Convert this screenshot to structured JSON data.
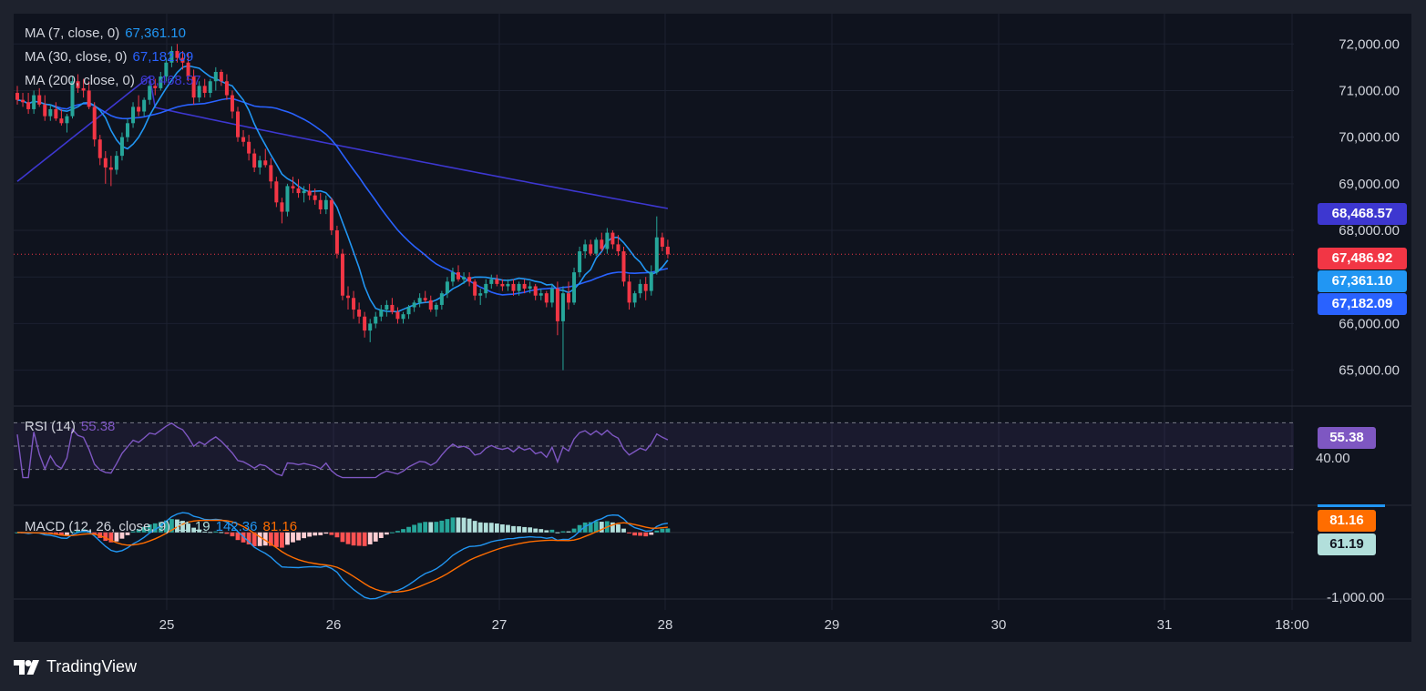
{
  "colors": {
    "background": "#0f131e",
    "frame": "#1e222d",
    "grid": "#1c2130",
    "up": "#26a69a",
    "down": "#f23645",
    "ma7": "#2196f3",
    "ma30": "#2962ff",
    "ma200": "#3d37d0",
    "rsi": "#7e57c2",
    "macd": "#2196f3",
    "signal": "#ff6d00",
    "axis_text": "#d1d4dc"
  },
  "legend": {
    "ma7": {
      "label": "MA (7, close, 0)",
      "value": "67,361.10"
    },
    "ma30": {
      "label": "MA (30, close, 0)",
      "value": "67,182.09"
    },
    "ma200": {
      "label": "MA (200, close, 0)",
      "value": "68,468.57"
    },
    "rsi": {
      "label": "RSI (14)",
      "value": "55.38"
    },
    "macd": {
      "label": "MACD (12, 26, close, 9)",
      "hist": "61.19",
      "macd": "142.36",
      "signal": "81.16"
    }
  },
  "price_tags": {
    "ma200": "68,468.57",
    "last": "67,486.92",
    "ma7": "67,361.10",
    "ma30": "67,182.09",
    "rsi": "55.38",
    "rsi_level": "40.00",
    "macd_signal": "81.16",
    "macd_hist": "61.19",
    "macd_level": "-1,000.00"
  },
  "brand": "TradingView",
  "chart_data": {
    "type": "candlestick",
    "x_ticks": [
      "25",
      "26",
      "27",
      "28",
      "29",
      "30",
      "31",
      "18:00"
    ],
    "y_ticks": [
      "72,000.00",
      "71,000.00",
      "70,000.00",
      "69,000.00",
      "68,000.00",
      "67,000.00",
      "66,000.00",
      "65,000.00"
    ],
    "y_range": [
      64250,
      72650
    ],
    "last_price": 67486.92,
    "candles": [
      [
        70950,
        71100,
        70700,
        70800
      ],
      [
        70800,
        70950,
        70650,
        70750
      ],
      [
        70750,
        70950,
        70500,
        70600
      ],
      [
        70600,
        71000,
        70500,
        70900
      ],
      [
        70900,
        71050,
        70650,
        70700
      ],
      [
        70700,
        70900,
        70350,
        70450
      ],
      [
        70450,
        70700,
        70350,
        70600
      ],
      [
        70600,
        70750,
        70350,
        70400
      ],
      [
        70400,
        70600,
        70250,
        70300
      ],
      [
        70300,
        70500,
        70100,
        70450
      ],
      [
        70450,
        71300,
        70400,
        71200
      ],
      [
        71200,
        71350,
        70950,
        71050
      ],
      [
        71050,
        71250,
        70850,
        71000
      ],
      [
        71000,
        71200,
        70600,
        70650
      ],
      [
        70650,
        70750,
        69800,
        69950
      ],
      [
        69950,
        70050,
        69400,
        69550
      ],
      [
        69550,
        69700,
        69000,
        69350
      ],
      [
        69350,
        69600,
        68950,
        69300
      ],
      [
        69300,
        69700,
        69200,
        69600
      ],
      [
        69600,
        70100,
        69500,
        70000
      ],
      [
        70000,
        70400,
        69900,
        70300
      ],
      [
        70300,
        70750,
        70200,
        70650
      ],
      [
        70650,
        70900,
        70450,
        70550
      ],
      [
        70550,
        70850,
        70450,
        70800
      ],
      [
        70800,
        71200,
        70700,
        71100
      ],
      [
        71100,
        71250,
        70900,
        71050
      ],
      [
        71050,
        71400,
        71000,
        71300
      ],
      [
        71300,
        71700,
        71200,
        71600
      ],
      [
        71600,
        71950,
        71500,
        71850
      ],
      [
        71850,
        72000,
        71600,
        71700
      ],
      [
        71700,
        71850,
        71450,
        71600
      ],
      [
        71600,
        71800,
        71200,
        71300
      ],
      [
        71300,
        71450,
        70700,
        70850
      ],
      [
        70850,
        71200,
        70750,
        71100
      ],
      [
        71100,
        71250,
        70850,
        70950
      ],
      [
        70950,
        71250,
        70850,
        71200
      ],
      [
        71200,
        71500,
        71000,
        71400
      ],
      [
        71400,
        71450,
        71100,
        71200
      ],
      [
        71200,
        71350,
        70800,
        70900
      ],
      [
        70900,
        71000,
        70400,
        70550
      ],
      [
        70550,
        70650,
        69900,
        70000
      ],
      [
        70000,
        70150,
        69800,
        69900
      ],
      [
        69900,
        70050,
        69500,
        69650
      ],
      [
        69650,
        69750,
        69250,
        69350
      ],
      [
        69350,
        69600,
        69200,
        69500
      ],
      [
        69500,
        69750,
        69350,
        69400
      ],
      [
        69400,
        69550,
        68900,
        69050
      ],
      [
        69050,
        69150,
        68500,
        68600
      ],
      [
        68600,
        68700,
        68150,
        68400
      ],
      [
        68400,
        69000,
        68300,
        68950
      ],
      [
        68950,
        69150,
        68800,
        68900
      ],
      [
        68900,
        69100,
        68700,
        68800
      ],
      [
        68800,
        68950,
        68600,
        68850
      ],
      [
        68850,
        69000,
        68650,
        68750
      ],
      [
        68750,
        68900,
        68550,
        68650
      ],
      [
        68650,
        68800,
        68350,
        68450
      ],
      [
        68450,
        68750,
        68350,
        68650
      ],
      [
        68650,
        68700,
        67900,
        68000
      ],
      [
        68000,
        68100,
        67400,
        67500
      ],
      [
        67500,
        67600,
        66500,
        66600
      ],
      [
        66600,
        66800,
        66300,
        66550
      ],
      [
        66550,
        66700,
        66100,
        66300
      ],
      [
        66300,
        66450,
        66000,
        66150
      ],
      [
        66150,
        66250,
        65700,
        65850
      ],
      [
        65850,
        66100,
        65600,
        66000
      ],
      [
        66000,
        66250,
        65900,
        66150
      ],
      [
        66150,
        66400,
        66050,
        66300
      ],
      [
        66300,
        66500,
        66150,
        66400
      ],
      [
        66400,
        66550,
        66200,
        66250
      ],
      [
        66250,
        66350,
        66000,
        66100
      ],
      [
        66100,
        66250,
        66000,
        66200
      ],
      [
        66200,
        66400,
        66100,
        66350
      ],
      [
        66350,
        66500,
        66250,
        66450
      ],
      [
        66450,
        66650,
        66350,
        66550
      ],
      [
        66550,
        66700,
        66450,
        66500
      ],
      [
        66500,
        66600,
        66250,
        66300
      ],
      [
        66300,
        66450,
        66150,
        66400
      ],
      [
        66400,
        66700,
        66300,
        66650
      ],
      [
        66650,
        67000,
        66550,
        66900
      ],
      [
        66900,
        67200,
        66800,
        67100
      ],
      [
        67100,
        67250,
        66900,
        66950
      ],
      [
        66950,
        67100,
        66850,
        67000
      ],
      [
        67000,
        67100,
        66800,
        66900
      ],
      [
        66900,
        66950,
        66500,
        66600
      ],
      [
        66600,
        66750,
        66400,
        66650
      ],
      [
        66650,
        66950,
        66550,
        66850
      ],
      [
        66850,
        67050,
        66750,
        66950
      ],
      [
        66950,
        67050,
        66800,
        66850
      ],
      [
        66850,
        66950,
        66700,
        66800
      ],
      [
        66800,
        66950,
        66700,
        66850
      ],
      [
        66850,
        66950,
        66600,
        66700
      ],
      [
        66700,
        66900,
        66600,
        66850
      ],
      [
        66850,
        66950,
        66650,
        66750
      ],
      [
        66750,
        66900,
        66650,
        66800
      ],
      [
        66800,
        66850,
        66500,
        66600
      ],
      [
        66600,
        66750,
        66500,
        66650
      ],
      [
        66650,
        66700,
        66350,
        66450
      ],
      [
        66450,
        66850,
        66350,
        66750
      ],
      [
        66750,
        66900,
        65750,
        66050
      ],
      [
        66050,
        66800,
        65000,
        66650
      ],
      [
        66650,
        66900,
        66300,
        66450
      ],
      [
        66450,
        67200,
        66400,
        67100
      ],
      [
        67100,
        67650,
        67000,
        67550
      ],
      [
        67550,
        67800,
        67400,
        67700
      ],
      [
        67700,
        67800,
        67450,
        67500
      ],
      [
        67500,
        67850,
        67450,
        67800
      ],
      [
        67800,
        67950,
        67550,
        67600
      ],
      [
        67600,
        68050,
        67500,
        67950
      ],
      [
        67950,
        68000,
        67600,
        67700
      ],
      [
        67700,
        67900,
        67450,
        67550
      ],
      [
        67550,
        67650,
        66800,
        66900
      ],
      [
        66900,
        67050,
        66300,
        66450
      ],
      [
        66450,
        66700,
        66350,
        66650
      ],
      [
        66650,
        66950,
        66550,
        66850
      ],
      [
        66850,
        67000,
        66500,
        66700
      ],
      [
        66700,
        67250,
        66600,
        67100
      ],
      [
        67100,
        68300,
        67050,
        67850
      ],
      [
        67850,
        67950,
        67550,
        67650
      ],
      [
        67650,
        67800,
        67400,
        67487
      ]
    ],
    "ma7_last": 67361.1,
    "ma30_last": 67182.09,
    "ma200_last": 68468.57,
    "rsi_last": 55.38,
    "macd_last": 142.36,
    "signal_last": 81.16,
    "hist_last": 61.19,
    "rsi_levels": [
      70,
      50,
      30
    ],
    "macd_y_range": [
      -1200,
      420
    ]
  }
}
